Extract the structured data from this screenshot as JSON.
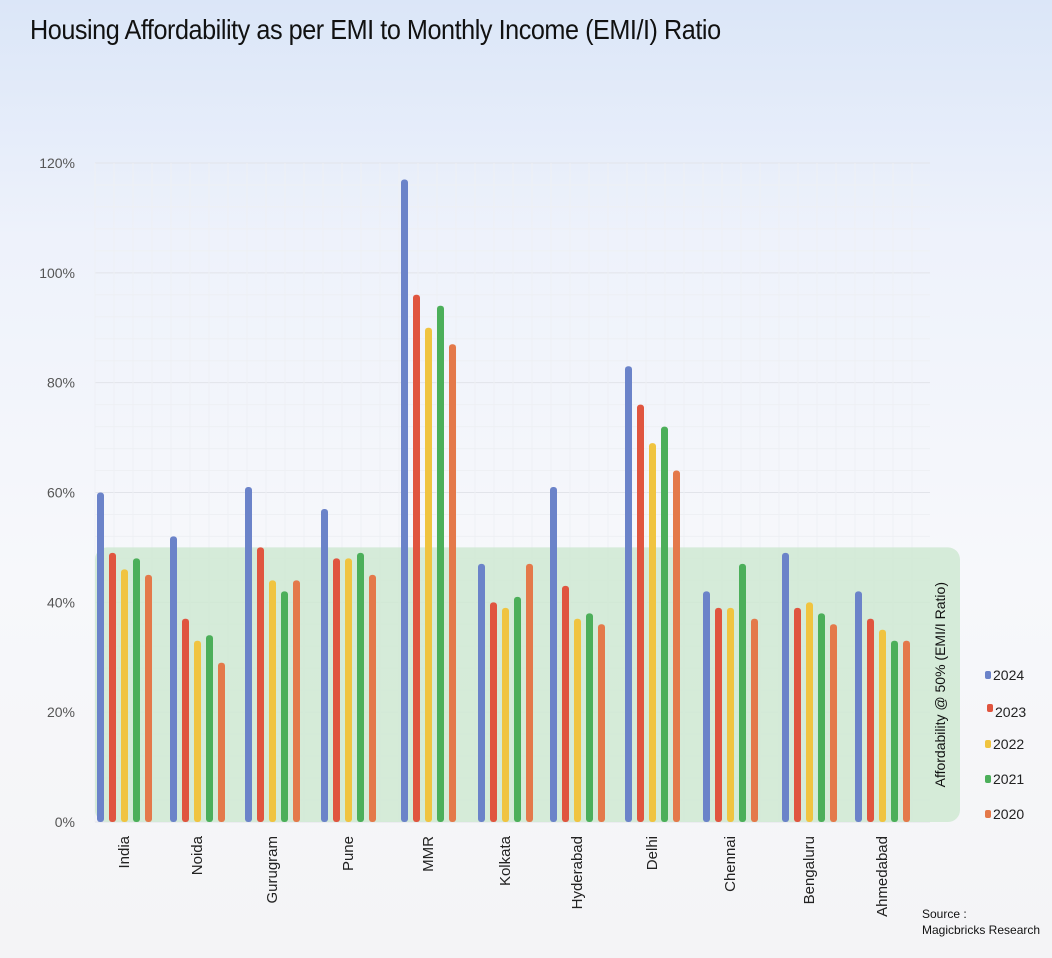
{
  "chart_data": {
    "type": "bar",
    "title": "Housing Affordability as per EMI to Monthly Income (EMI/I) Ratio",
    "xlabel": "",
    "ylabel": "",
    "ylim": [
      0,
      120
    ],
    "yticks": [
      "0%",
      "20%",
      "40%",
      "60%",
      "80%",
      "100%",
      "120%"
    ],
    "grid": true,
    "legend_position": "right",
    "categories": [
      "India",
      "Noida",
      "Gurugram",
      "Pune",
      "MMR",
      "Kolkata",
      "Hyderabad",
      "Delhi",
      "Chennai",
      "Bengaluru",
      "Ahmedabad"
    ],
    "series": [
      {
        "name": "2024",
        "color": "#6b83c9",
        "values": [
          60,
          52,
          61,
          57,
          117,
          47,
          61,
          83,
          42,
          49,
          42
        ]
      },
      {
        "name": "2023",
        "color": "#e0553f",
        "values": [
          49,
          37,
          50,
          48,
          96,
          40,
          43,
          76,
          39,
          39,
          37
        ]
      },
      {
        "name": "2022",
        "color": "#f0c440",
        "values": [
          46,
          33,
          44,
          48,
          90,
          39,
          37,
          69,
          39,
          40,
          35
        ]
      },
      {
        "name": "2021",
        "color": "#4caf5a",
        "values": [
          48,
          34,
          42,
          49,
          94,
          41,
          38,
          72,
          47,
          38,
          33
        ]
      },
      {
        "name": "2020",
        "color": "#e4794a",
        "values": [
          45,
          29,
          44,
          45,
          87,
          47,
          36,
          64,
          37,
          36,
          33
        ]
      }
    ],
    "annotation": {
      "label": "Affordability @ 50% (EMI/I Ratio)",
      "threshold": 50,
      "color": "#cfe9d2"
    },
    "source": [
      "Source :",
      "Magicbricks Research"
    ]
  }
}
